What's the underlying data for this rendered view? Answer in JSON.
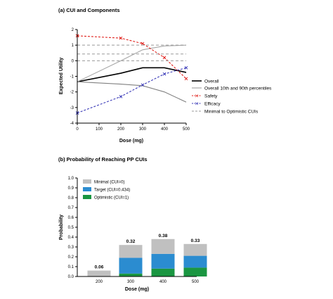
{
  "chart_data": [
    {
      "type": "line",
      "title": "(a) CUI and Components",
      "xlabel": "Dose (mg)",
      "ylabel": "Expected Utility",
      "x": [
        0,
        100,
        200,
        300,
        400,
        500
      ],
      "x_ticks": [
        "0",
        "100",
        "200",
        "300",
        "400",
        "500"
      ],
      "y_ticks": [
        "-4",
        "-3",
        "-2",
        "-1",
        "0",
        "1",
        "2"
      ],
      "xlim": [
        0,
        500
      ],
      "ylim": [
        -4,
        2
      ],
      "grid": false,
      "legend_position": "right",
      "series": [
        {
          "name": "Overall",
          "style": "solid",
          "color": "#000000",
          "x": [
            0,
            200,
            300,
            400,
            500
          ],
          "y": [
            -1.35,
            -0.8,
            -0.45,
            -0.45,
            -0.75
          ]
        },
        {
          "name": "Overall 10th and 90th percentiles",
          "style": "solid",
          "color": "#a6a6a6",
          "x": [
            0,
            200,
            300,
            400,
            500
          ],
          "y": [
            -1.35,
            0.0,
            0.7,
            0.95,
            1.0
          ]
        },
        {
          "name": "",
          "style": "solid",
          "color": "#808080",
          "x": [
            0,
            200,
            300,
            400,
            500
          ],
          "y": [
            -1.35,
            -1.5,
            -1.6,
            -2.0,
            -2.65
          ]
        },
        {
          "name": "Safety",
          "style": "dashed",
          "marker": "x",
          "color": "#e0201b",
          "x": [
            0,
            200,
            300,
            400,
            500
          ],
          "y": [
            1.6,
            1.45,
            1.1,
            0.2,
            -1.15
          ]
        },
        {
          "name": "Efficacy",
          "style": "dashed",
          "marker": "x",
          "color": "#3a3ab8",
          "x": [
            0,
            200,
            300,
            400,
            500
          ],
          "y": [
            -3.35,
            -2.3,
            -1.55,
            -0.85,
            -0.45
          ]
        },
        {
          "name": "Minimal to Optimistic CUIs",
          "style": "dashed",
          "color": "#999999",
          "lines": [
            0.0,
            0.434,
            1.0
          ]
        }
      ]
    },
    {
      "type": "bar",
      "stacked": true,
      "title": "(b) Probability of Reaching PP CUIs",
      "xlabel": "Dose (mg)",
      "ylabel": "Probability",
      "categories": [
        "200",
        "300",
        "400",
        "500"
      ],
      "y_ticks": [
        "0.0",
        "0.1",
        "0.2",
        "0.3",
        "0.4",
        "0.5",
        "0.6",
        "0.7",
        "0.8",
        "0.9",
        "1.0"
      ],
      "ylim": [
        0,
        1
      ],
      "grid": false,
      "legend_position": "top-left",
      "totals_labels": [
        "0.06",
        "0.32",
        "0.38",
        "0.33"
      ],
      "series": [
        {
          "name": "Optimistic (CUI=1)",
          "color": "#1a9641",
          "values": [
            0.0,
            0.03,
            0.08,
            0.09
          ]
        },
        {
          "name": "Target (CUI=0.434)",
          "color": "#2b8cd0",
          "values": [
            0.0,
            0.16,
            0.15,
            0.12
          ]
        },
        {
          "name": "Minimal (CUI=0)",
          "color": "#c0c0c0",
          "values": [
            0.06,
            0.13,
            0.15,
            0.12
          ]
        }
      ]
    }
  ]
}
